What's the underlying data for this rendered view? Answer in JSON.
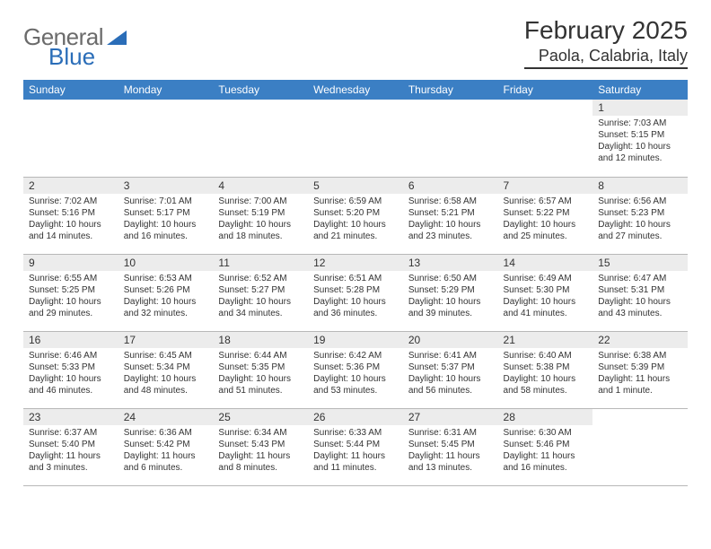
{
  "logo": {
    "word1": "General",
    "word2": "Blue"
  },
  "title": "February 2025",
  "location": "Paola, Calabria, Italy",
  "weekdays": [
    "Sunday",
    "Monday",
    "Tuesday",
    "Wednesday",
    "Thursday",
    "Friday",
    "Saturday"
  ],
  "colors": {
    "header_bg": "#3b7fc4",
    "header_text": "#ffffff",
    "daynum_bg": "#ececec",
    "text": "#333333",
    "logo_gray": "#6b6b6b",
    "logo_blue": "#2a6db8",
    "border": "#b8b8b8"
  },
  "grid": [
    [
      null,
      null,
      null,
      null,
      null,
      null,
      {
        "n": "1",
        "sunrise": "Sunrise: 7:03 AM",
        "sunset": "Sunset: 5:15 PM",
        "daylight": "Daylight: 10 hours and 12 minutes."
      }
    ],
    [
      {
        "n": "2",
        "sunrise": "Sunrise: 7:02 AM",
        "sunset": "Sunset: 5:16 PM",
        "daylight": "Daylight: 10 hours and 14 minutes."
      },
      {
        "n": "3",
        "sunrise": "Sunrise: 7:01 AM",
        "sunset": "Sunset: 5:17 PM",
        "daylight": "Daylight: 10 hours and 16 minutes."
      },
      {
        "n": "4",
        "sunrise": "Sunrise: 7:00 AM",
        "sunset": "Sunset: 5:19 PM",
        "daylight": "Daylight: 10 hours and 18 minutes."
      },
      {
        "n": "5",
        "sunrise": "Sunrise: 6:59 AM",
        "sunset": "Sunset: 5:20 PM",
        "daylight": "Daylight: 10 hours and 21 minutes."
      },
      {
        "n": "6",
        "sunrise": "Sunrise: 6:58 AM",
        "sunset": "Sunset: 5:21 PM",
        "daylight": "Daylight: 10 hours and 23 minutes."
      },
      {
        "n": "7",
        "sunrise": "Sunrise: 6:57 AM",
        "sunset": "Sunset: 5:22 PM",
        "daylight": "Daylight: 10 hours and 25 minutes."
      },
      {
        "n": "8",
        "sunrise": "Sunrise: 6:56 AM",
        "sunset": "Sunset: 5:23 PM",
        "daylight": "Daylight: 10 hours and 27 minutes."
      }
    ],
    [
      {
        "n": "9",
        "sunrise": "Sunrise: 6:55 AM",
        "sunset": "Sunset: 5:25 PM",
        "daylight": "Daylight: 10 hours and 29 minutes."
      },
      {
        "n": "10",
        "sunrise": "Sunrise: 6:53 AM",
        "sunset": "Sunset: 5:26 PM",
        "daylight": "Daylight: 10 hours and 32 minutes."
      },
      {
        "n": "11",
        "sunrise": "Sunrise: 6:52 AM",
        "sunset": "Sunset: 5:27 PM",
        "daylight": "Daylight: 10 hours and 34 minutes."
      },
      {
        "n": "12",
        "sunrise": "Sunrise: 6:51 AM",
        "sunset": "Sunset: 5:28 PM",
        "daylight": "Daylight: 10 hours and 36 minutes."
      },
      {
        "n": "13",
        "sunrise": "Sunrise: 6:50 AM",
        "sunset": "Sunset: 5:29 PM",
        "daylight": "Daylight: 10 hours and 39 minutes."
      },
      {
        "n": "14",
        "sunrise": "Sunrise: 6:49 AM",
        "sunset": "Sunset: 5:30 PM",
        "daylight": "Daylight: 10 hours and 41 minutes."
      },
      {
        "n": "15",
        "sunrise": "Sunrise: 6:47 AM",
        "sunset": "Sunset: 5:31 PM",
        "daylight": "Daylight: 10 hours and 43 minutes."
      }
    ],
    [
      {
        "n": "16",
        "sunrise": "Sunrise: 6:46 AM",
        "sunset": "Sunset: 5:33 PM",
        "daylight": "Daylight: 10 hours and 46 minutes."
      },
      {
        "n": "17",
        "sunrise": "Sunrise: 6:45 AM",
        "sunset": "Sunset: 5:34 PM",
        "daylight": "Daylight: 10 hours and 48 minutes."
      },
      {
        "n": "18",
        "sunrise": "Sunrise: 6:44 AM",
        "sunset": "Sunset: 5:35 PM",
        "daylight": "Daylight: 10 hours and 51 minutes."
      },
      {
        "n": "19",
        "sunrise": "Sunrise: 6:42 AM",
        "sunset": "Sunset: 5:36 PM",
        "daylight": "Daylight: 10 hours and 53 minutes."
      },
      {
        "n": "20",
        "sunrise": "Sunrise: 6:41 AM",
        "sunset": "Sunset: 5:37 PM",
        "daylight": "Daylight: 10 hours and 56 minutes."
      },
      {
        "n": "21",
        "sunrise": "Sunrise: 6:40 AM",
        "sunset": "Sunset: 5:38 PM",
        "daylight": "Daylight: 10 hours and 58 minutes."
      },
      {
        "n": "22",
        "sunrise": "Sunrise: 6:38 AM",
        "sunset": "Sunset: 5:39 PM",
        "daylight": "Daylight: 11 hours and 1 minute."
      }
    ],
    [
      {
        "n": "23",
        "sunrise": "Sunrise: 6:37 AM",
        "sunset": "Sunset: 5:40 PM",
        "daylight": "Daylight: 11 hours and 3 minutes."
      },
      {
        "n": "24",
        "sunrise": "Sunrise: 6:36 AM",
        "sunset": "Sunset: 5:42 PM",
        "daylight": "Daylight: 11 hours and 6 minutes."
      },
      {
        "n": "25",
        "sunrise": "Sunrise: 6:34 AM",
        "sunset": "Sunset: 5:43 PM",
        "daylight": "Daylight: 11 hours and 8 minutes."
      },
      {
        "n": "26",
        "sunrise": "Sunrise: 6:33 AM",
        "sunset": "Sunset: 5:44 PM",
        "daylight": "Daylight: 11 hours and 11 minutes."
      },
      {
        "n": "27",
        "sunrise": "Sunrise: 6:31 AM",
        "sunset": "Sunset: 5:45 PM",
        "daylight": "Daylight: 11 hours and 13 minutes."
      },
      {
        "n": "28",
        "sunrise": "Sunrise: 6:30 AM",
        "sunset": "Sunset: 5:46 PM",
        "daylight": "Daylight: 11 hours and 16 minutes."
      },
      null
    ]
  ]
}
